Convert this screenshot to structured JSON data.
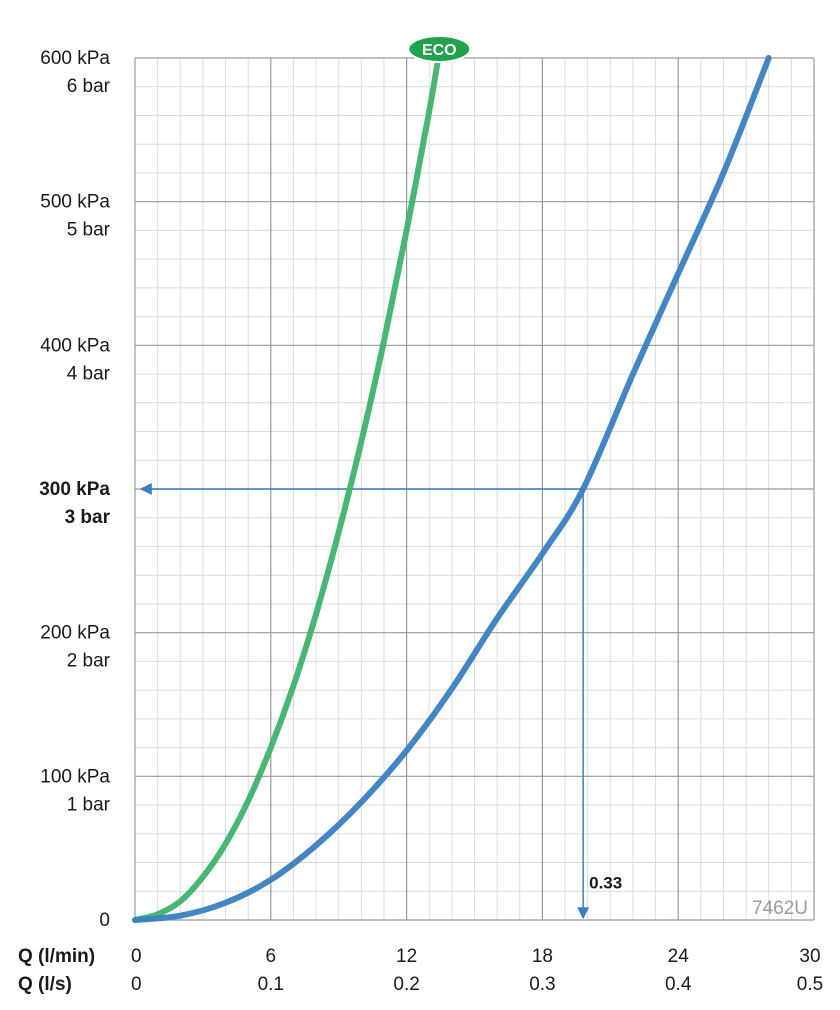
{
  "chart_data": {
    "type": "line",
    "title": "",
    "xlabel": "",
    "ylabel": "",
    "xlim": [
      0,
      30
    ],
    "ylim": [
      0,
      600
    ],
    "grid": true,
    "x_axis_labels": {
      "primary_name": "Q (l/min)",
      "secondary_name": "Q (l/s)",
      "primary_ticks": [
        "0",
        "6",
        "12",
        "18",
        "24",
        "30"
      ],
      "secondary_ticks": [
        "0",
        "0.1",
        "0.2",
        "0.3",
        "0.4",
        "0.5"
      ],
      "tick_values": [
        0,
        6,
        12,
        18,
        24,
        30
      ]
    },
    "y_axis_labels": [
      {
        "value": 0,
        "kpa": "0",
        "bar": "",
        "bold": false
      },
      {
        "value": 100,
        "kpa": "100 kPa",
        "bar": "1 bar",
        "bold": false
      },
      {
        "value": 200,
        "kpa": "200 kPa",
        "bar": "2 bar",
        "bold": false
      },
      {
        "value": 300,
        "kpa": "300 kPa",
        "bar": "3 bar",
        "bold": true
      },
      {
        "value": 400,
        "kpa": "400 kPa",
        "bar": "4 bar",
        "bold": false
      },
      {
        "value": 500,
        "kpa": "500 kPa",
        "bar": "5 bar",
        "bold": false
      },
      {
        "value": 600,
        "kpa": "600 kPa",
        "bar": "6 bar",
        "bold": false
      }
    ],
    "series": [
      {
        "name": "ECO",
        "color": "#3db36b",
        "x": [
          0,
          1,
          2,
          3,
          4,
          5,
          6,
          7,
          8,
          9,
          10,
          11,
          12,
          13,
          13.4
        ],
        "y": [
          0,
          4,
          13,
          30,
          53,
          83,
          120,
          163,
          213,
          270,
          333,
          403,
          480,
          563,
          600
        ]
      },
      {
        "name": "",
        "color": "#3a7fc1",
        "x": [
          0,
          2,
          4,
          6,
          8,
          10,
          12,
          14,
          16,
          18,
          19.8,
          22,
          24,
          26,
          28
        ],
        "y": [
          0,
          3,
          12,
          28,
          52,
          82,
          118,
          161,
          210,
          255,
          300,
          380,
          450,
          520,
          600
        ]
      }
    ],
    "reference": {
      "x": 19.8,
      "y": 300,
      "label": "0.33",
      "color": "#3a7fc1"
    },
    "badge": {
      "text": "ECO",
      "color": "#1fa24a"
    },
    "code_label": "7462U"
  }
}
